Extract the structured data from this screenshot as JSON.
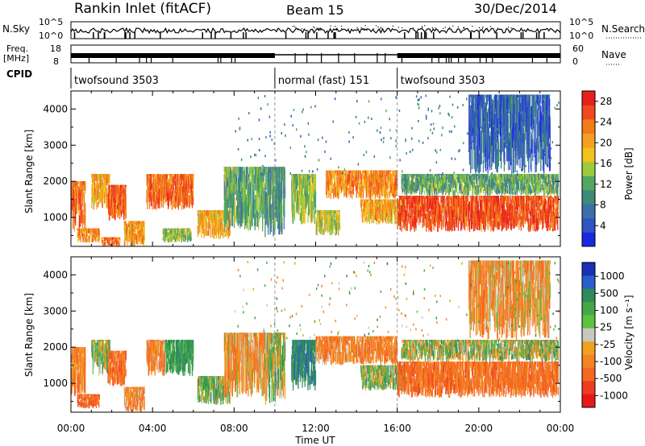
{
  "header": {
    "station": "Rankin Inlet (fitACF)",
    "beam": "Beam 15",
    "date": "30/Dec/2014"
  },
  "strip": {
    "nsky_label": "N.Sky",
    "nsky_top": "10^5",
    "nsky_bottom": "10^0",
    "nsearch_top": "10^5",
    "nsearch_bottom": "10^0",
    "nsearch_label": "N.Search",
    "freq_label_line1": "Freq.",
    "freq_label_line2": "[MHz]",
    "freq_top": "18",
    "freq_bottom": "8",
    "nave_top": "60",
    "nave_bottom": "0",
    "nave_label": "Nave",
    "cpid_label": "CPID",
    "cpid_segments": [
      {
        "text": "twofsound 3503",
        "start": 0,
        "end": 10
      },
      {
        "text": "normal (fast) 151",
        "start": 10,
        "end": 16
      },
      {
        "text": "twofsound 3503",
        "start": 16,
        "end": 24
      }
    ]
  },
  "colors": {
    "power_scale": [
      "#1a28e0",
      "#2f52c4",
      "#3c6ea8",
      "#3e8a78",
      "#52a860",
      "#9ccc3c",
      "#f2c21c",
      "#f5a020",
      "#f47a1c",
      "#f04a1c",
      "#e8201c"
    ],
    "velocity_scale": [
      "#1a30b8",
      "#2a5ccc",
      "#2f8a5c",
      "#42a848",
      "#5ec23c",
      "#c8c8c0",
      "#f2a020",
      "#f48424",
      "#f46820",
      "#ee3c20",
      "#e81818"
    ]
  },
  "chart_data": [
    {
      "type": "heatmap",
      "name": "power",
      "xlabel": "",
      "ylabel": "Slant Range [km]",
      "x_range_hours": [
        0,
        24
      ],
      "ylim": [
        200,
        4500
      ],
      "yticks": [
        "1000",
        "2000",
        "3000",
        "4000"
      ],
      "colorbar": {
        "label": "Power [dB]",
        "ticks": [
          "4",
          "8",
          "12",
          "16",
          "20",
          "24",
          "28"
        ],
        "range": [
          0,
          30
        ]
      },
      "bands": [
        {
          "x0": 0.0,
          "x1": 0.7,
          "y0": 600,
          "y1": 2000,
          "value": 24
        },
        {
          "x0": 0.3,
          "x1": 1.4,
          "y0": 300,
          "y1": 700,
          "value": 22
        },
        {
          "x0": 1.0,
          "x1": 1.9,
          "y0": 1200,
          "y1": 2200,
          "value": 20
        },
        {
          "x0": 1.8,
          "x1": 2.7,
          "y0": 900,
          "y1": 1900,
          "value": 25
        },
        {
          "x0": 1.5,
          "x1": 2.4,
          "y0": 200,
          "y1": 450,
          "value": 24
        },
        {
          "x0": 2.6,
          "x1": 3.6,
          "y0": 200,
          "y1": 900,
          "value": 21
        },
        {
          "x0": 3.7,
          "x1": 6.0,
          "y0": 1200,
          "y1": 2200,
          "value": 24
        },
        {
          "x0": 4.5,
          "x1": 5.9,
          "y0": 300,
          "y1": 700,
          "value": 14
        },
        {
          "x0": 6.2,
          "x1": 7.8,
          "y0": 400,
          "y1": 1200,
          "value": 20
        },
        {
          "x0": 7.5,
          "x1": 9.5,
          "y0": 600,
          "y1": 2400,
          "value": 12
        },
        {
          "x0": 9.5,
          "x1": 10.5,
          "y0": 400,
          "y1": 2400,
          "value": 10
        },
        {
          "x0": 10.8,
          "x1": 12.0,
          "y0": 800,
          "y1": 2200,
          "value": 14
        },
        {
          "x0": 12.0,
          "x1": 13.2,
          "y0": 500,
          "y1": 1200,
          "value": 16
        },
        {
          "x0": 12.5,
          "x1": 16.0,
          "y0": 1500,
          "y1": 2300,
          "value": 22
        },
        {
          "x0": 14.2,
          "x1": 16.4,
          "y0": 800,
          "y1": 1500,
          "value": 20
        },
        {
          "x0": 16.0,
          "x1": 23.9,
          "y0": 600,
          "y1": 1600,
          "value": 26
        },
        {
          "x0": 16.2,
          "x1": 23.9,
          "y0": 1600,
          "y1": 2200,
          "value": 12
        },
        {
          "x0": 19.5,
          "x1": 23.5,
          "y0": 2200,
          "y1": 4400,
          "value": 6
        }
      ]
    },
    {
      "type": "heatmap",
      "name": "velocity",
      "xlabel": "Time UT",
      "ylabel": "Slant Range [km]",
      "x_range_hours": [
        0,
        24
      ],
      "xticks": [
        "00:00",
        "04:00",
        "08:00",
        "12:00",
        "16:00",
        "20:00",
        "00:00"
      ],
      "ylim": [
        200,
        4500
      ],
      "yticks": [
        "1000",
        "2000",
        "3000",
        "4000"
      ],
      "colorbar": {
        "label": "Velocity [m s⁻¹]",
        "ticks": [
          "1000",
          "500",
          "100",
          "25",
          "-25",
          "-100",
          "-500",
          "-1000"
        ]
      },
      "bands": [
        {
          "x0": 0.0,
          "x1": 0.7,
          "y0": 600,
          "y1": 2000,
          "value": -200
        },
        {
          "x0": 0.3,
          "x1": 1.4,
          "y0": 300,
          "y1": 700,
          "value": -300
        },
        {
          "x0": 1.0,
          "x1": 1.9,
          "y0": 1200,
          "y1": 2200,
          "value": 60
        },
        {
          "x0": 1.8,
          "x1": 2.7,
          "y0": 900,
          "y1": 1900,
          "value": -250
        },
        {
          "x0": 2.6,
          "x1": 3.6,
          "y0": 200,
          "y1": 900,
          "value": -150
        },
        {
          "x0": 3.7,
          "x1": 4.6,
          "y0": 1200,
          "y1": 2200,
          "value": -150
        },
        {
          "x0": 4.6,
          "x1": 6.0,
          "y0": 1200,
          "y1": 2200,
          "value": 200
        },
        {
          "x0": 6.2,
          "x1": 7.8,
          "y0": 400,
          "y1": 1200,
          "value": 80
        },
        {
          "x0": 7.5,
          "x1": 9.5,
          "y0": 600,
          "y1": 2400,
          "value": -120
        },
        {
          "x0": 9.5,
          "x1": 10.5,
          "y0": 400,
          "y1": 2400,
          "value": 40
        },
        {
          "x0": 10.8,
          "x1": 12.0,
          "y0": 800,
          "y1": 2200,
          "value": 300
        },
        {
          "x0": 12.0,
          "x1": 16.0,
          "y0": 1500,
          "y1": 2300,
          "value": -180
        },
        {
          "x0": 14.2,
          "x1": 16.4,
          "y0": 800,
          "y1": 1500,
          "value": 60
        },
        {
          "x0": 16.0,
          "x1": 23.9,
          "y0": 600,
          "y1": 1600,
          "value": -260
        },
        {
          "x0": 16.2,
          "x1": 23.9,
          "y0": 1600,
          "y1": 2200,
          "value": 30
        },
        {
          "x0": 19.5,
          "x1": 23.5,
          "y0": 2200,
          "y1": 4400,
          "value": -120
        }
      ]
    }
  ]
}
